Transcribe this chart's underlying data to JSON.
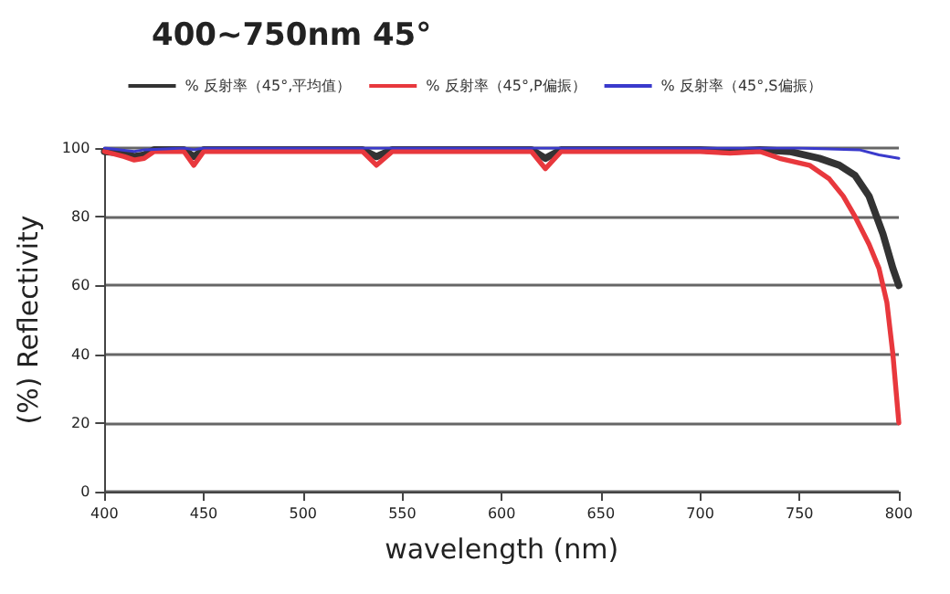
{
  "chart_data": {
    "type": "line",
    "title": "400~750nm 45°",
    "xlabel": "wavelength (nm)",
    "ylabel": "(%) Reflectivity",
    "xlim": [
      400,
      800
    ],
    "xticks": [
      400,
      450,
      500,
      550,
      600,
      650,
      700,
      750,
      800
    ],
    "ylim": [
      0,
      100
    ],
    "yticks": [
      0,
      20,
      40,
      60,
      80,
      100
    ],
    "grid": "y",
    "legend": "top",
    "marker": "none",
    "line_style": "solid",
    "series": [
      {
        "name": "% 反射率（45°,平均值）",
        "color": "#333333",
        "x": [
          400,
          410,
          415,
          420,
          425,
          440,
          445,
          450,
          530,
          537,
          545,
          615,
          622,
          630,
          700,
          715,
          730,
          745,
          760,
          770,
          778,
          785,
          792,
          797,
          800
        ],
        "values": [
          99,
          98.5,
          97.5,
          98,
          99.5,
          99.5,
          97.5,
          99.5,
          99.5,
          97.5,
          99.5,
          99.5,
          97,
          99.5,
          99.5,
          99,
          99.5,
          99,
          97,
          95,
          92,
          86,
          75,
          65,
          60
        ]
      },
      {
        "name": "% 反射率（45°,P偏振）",
        "color": "#e8383d",
        "x": [
          400,
          410,
          415,
          420,
          425,
          440,
          445,
          450,
          530,
          537,
          545,
          615,
          622,
          630,
          700,
          715,
          730,
          740,
          755,
          765,
          772,
          778,
          785,
          790,
          794,
          797,
          800
        ],
        "values": [
          99,
          97.5,
          96.5,
          97,
          99,
          99,
          95,
          99,
          99,
          95,
          99,
          99,
          94,
          99,
          99,
          98.5,
          99,
          97,
          95,
          91,
          86,
          80,
          72,
          65,
          55,
          40,
          20
        ]
      },
      {
        "name": "% 反射率（45°,S偏振）",
        "color": "#3a3acc",
        "x": [
          400,
          415,
          420,
          440,
          445,
          450,
          700,
          750,
          780,
          790,
          800
        ],
        "values": [
          100,
          99,
          99.5,
          100,
          99.5,
          100,
          100,
          100,
          99.5,
          98,
          97
        ]
      }
    ]
  }
}
